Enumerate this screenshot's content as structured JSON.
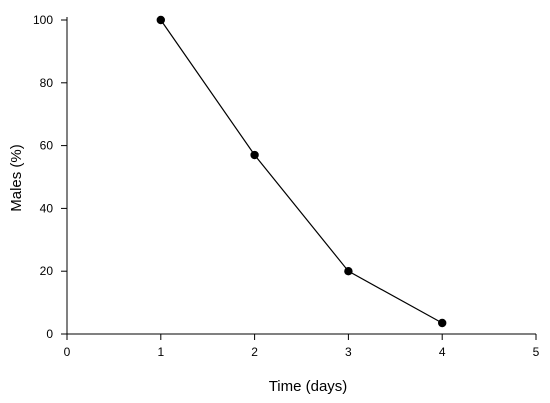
{
  "chart_data": {
    "type": "line",
    "xlabel": "Time (days)",
    "ylabel": "Males (%)",
    "xlim": [
      0,
      5
    ],
    "ylim": [
      0,
      100
    ],
    "x_ticks": [
      0,
      1,
      2,
      3,
      4,
      5
    ],
    "y_ticks": [
      0,
      20,
      40,
      60,
      80,
      100
    ],
    "grid": false,
    "legend": "none",
    "series": [
      {
        "x": [
          1,
          2,
          3,
          4
        ],
        "y": [
          100,
          57,
          20,
          3.5
        ]
      }
    ],
    "colors": {
      "line": "#000000",
      "marker": "#000000",
      "axis": "#000000"
    }
  }
}
